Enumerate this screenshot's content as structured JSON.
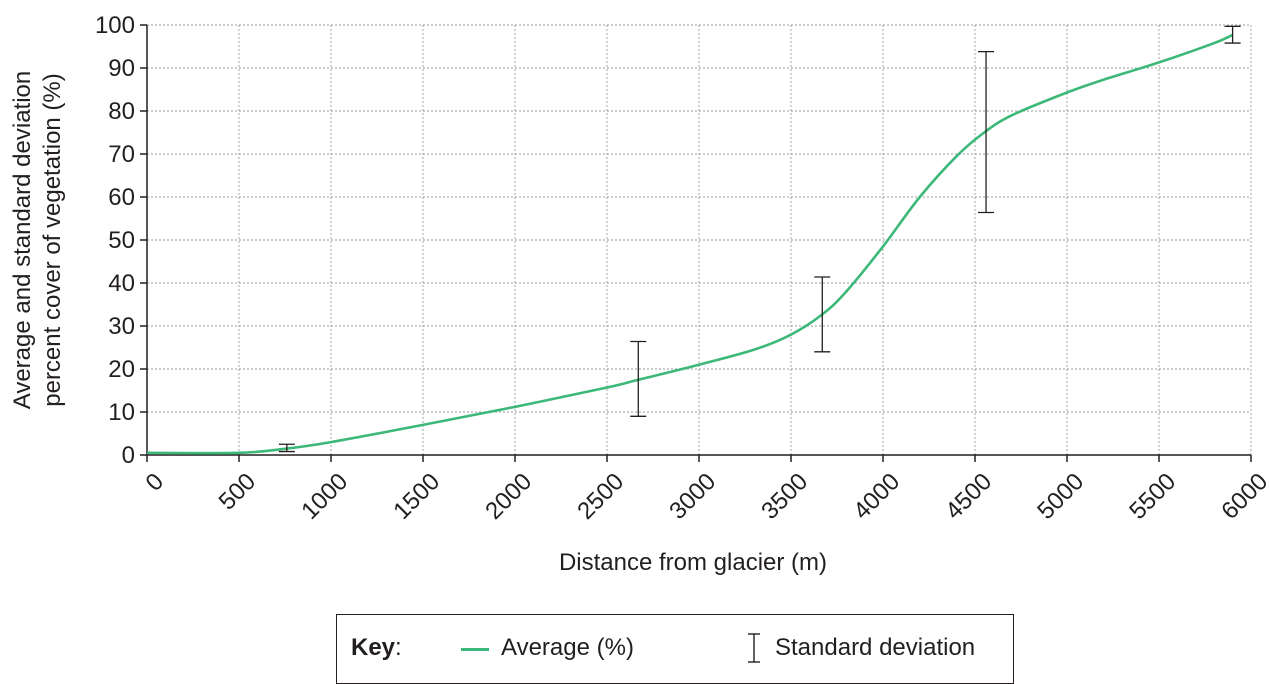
{
  "chart_data": {
    "type": "line",
    "xlabel": "Distance from glacier (m)",
    "ylabel_line1": "Average and standard deviation",
    "ylabel_line2": "percent cover of vegetation (%)",
    "xlim": [
      0,
      6000
    ],
    "ylim": [
      0,
      100
    ],
    "x_ticks": [
      0,
      500,
      1000,
      1500,
      2000,
      2500,
      3000,
      3500,
      4000,
      4500,
      5000,
      5500,
      6000
    ],
    "y_ticks": [
      0,
      10,
      20,
      30,
      40,
      50,
      60,
      70,
      80,
      90,
      100
    ],
    "grid": true,
    "series": [
      {
        "name": "Average (%)",
        "color": "#3cb878",
        "points": [
          {
            "x": 0,
            "y": 0.5
          },
          {
            "x": 500,
            "y": 0.5
          },
          {
            "x": 760,
            "y": 1.5
          },
          {
            "x": 1000,
            "y": 3
          },
          {
            "x": 1500,
            "y": 7
          },
          {
            "x": 2000,
            "y": 11.2
          },
          {
            "x": 2500,
            "y": 15.7
          },
          {
            "x": 2670,
            "y": 17.5
          },
          {
            "x": 3000,
            "y": 21
          },
          {
            "x": 3300,
            "y": 24.5
          },
          {
            "x": 3500,
            "y": 28
          },
          {
            "x": 3670,
            "y": 32.7
          },
          {
            "x": 3800,
            "y": 38
          },
          {
            "x": 4000,
            "y": 48.5
          },
          {
            "x": 4200,
            "y": 60
          },
          {
            "x": 4400,
            "y": 69.5
          },
          {
            "x": 4550,
            "y": 75
          },
          {
            "x": 4700,
            "y": 79
          },
          {
            "x": 5000,
            "y": 84.3
          },
          {
            "x": 5200,
            "y": 87.3
          },
          {
            "x": 5500,
            "y": 91.3
          },
          {
            "x": 5800,
            "y": 95.8
          },
          {
            "x": 5900,
            "y": 97.7
          }
        ]
      }
    ],
    "error_bars": {
      "name": "Standard deviation",
      "items": [
        {
          "x": 760,
          "low": 0.8,
          "high": 2.5
        },
        {
          "x": 2670,
          "low": 9,
          "high": 26.4
        },
        {
          "x": 3670,
          "low": 24,
          "high": 41.4
        },
        {
          "x": 4560,
          "low": 56.4,
          "high": 93.8
        },
        {
          "x": 5900,
          "low": 95.8,
          "high": 99.7
        }
      ]
    }
  },
  "key": {
    "title": "Key",
    "colon": ":",
    "average_label": "Average (%)",
    "sd_label": "Standard deviation"
  }
}
